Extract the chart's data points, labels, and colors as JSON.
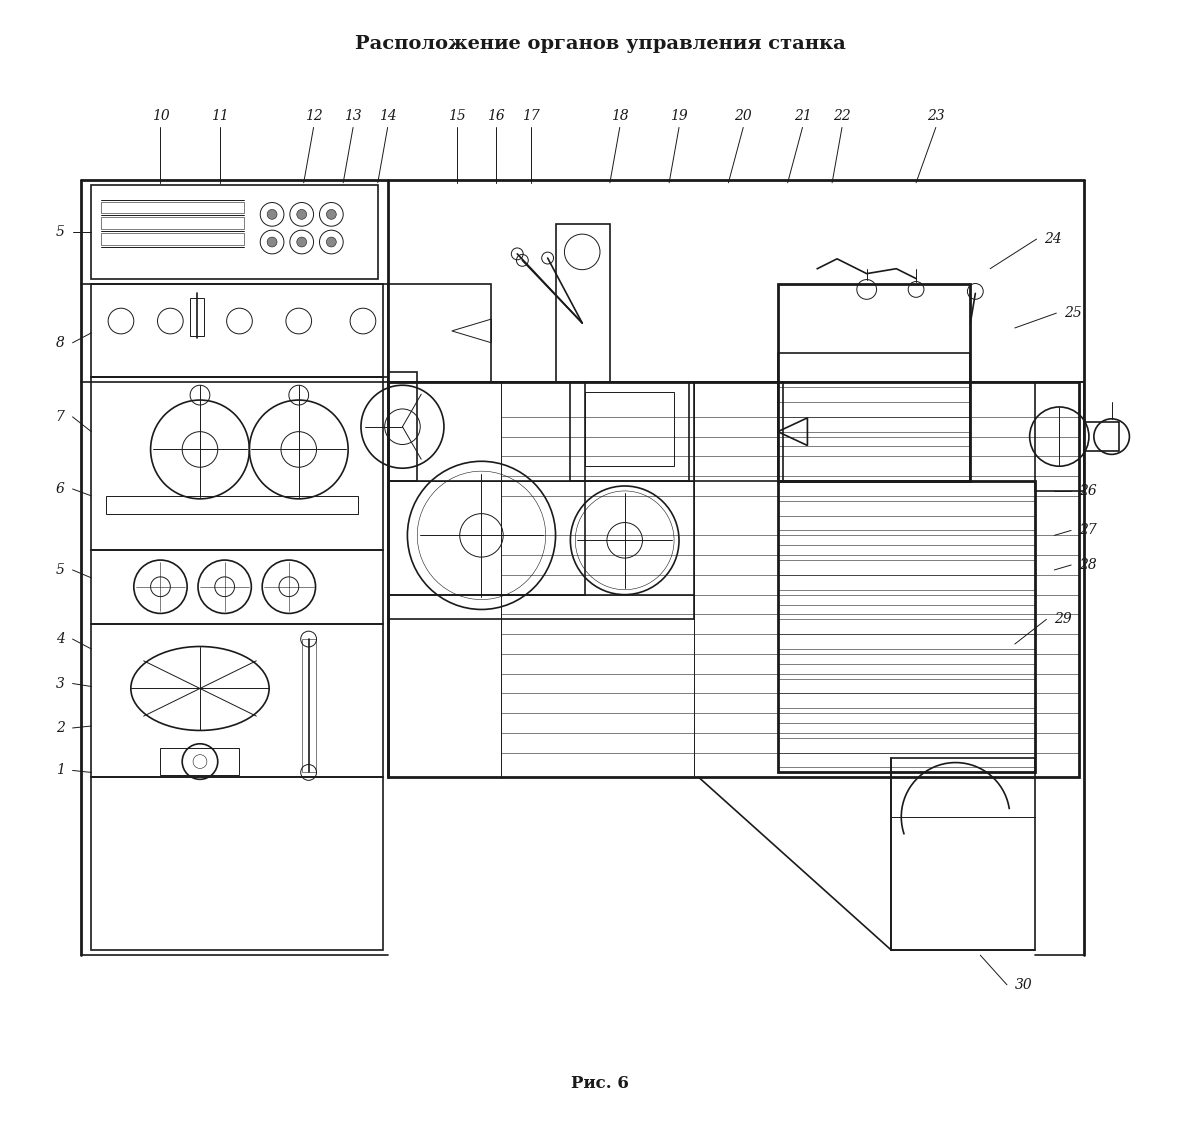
{
  "title": "Расположение органов управления станка",
  "caption": "Рис. 6",
  "bg_color": "#ffffff",
  "line_color": "#1a1a1a",
  "title_fontsize": 14,
  "caption_fontsize": 12,
  "label_fontsize": 10,
  "lw_main": 1.2,
  "lw_thick": 2.0,
  "lw_thin": 0.7,
  "lw_ultra_thin": 0.4
}
